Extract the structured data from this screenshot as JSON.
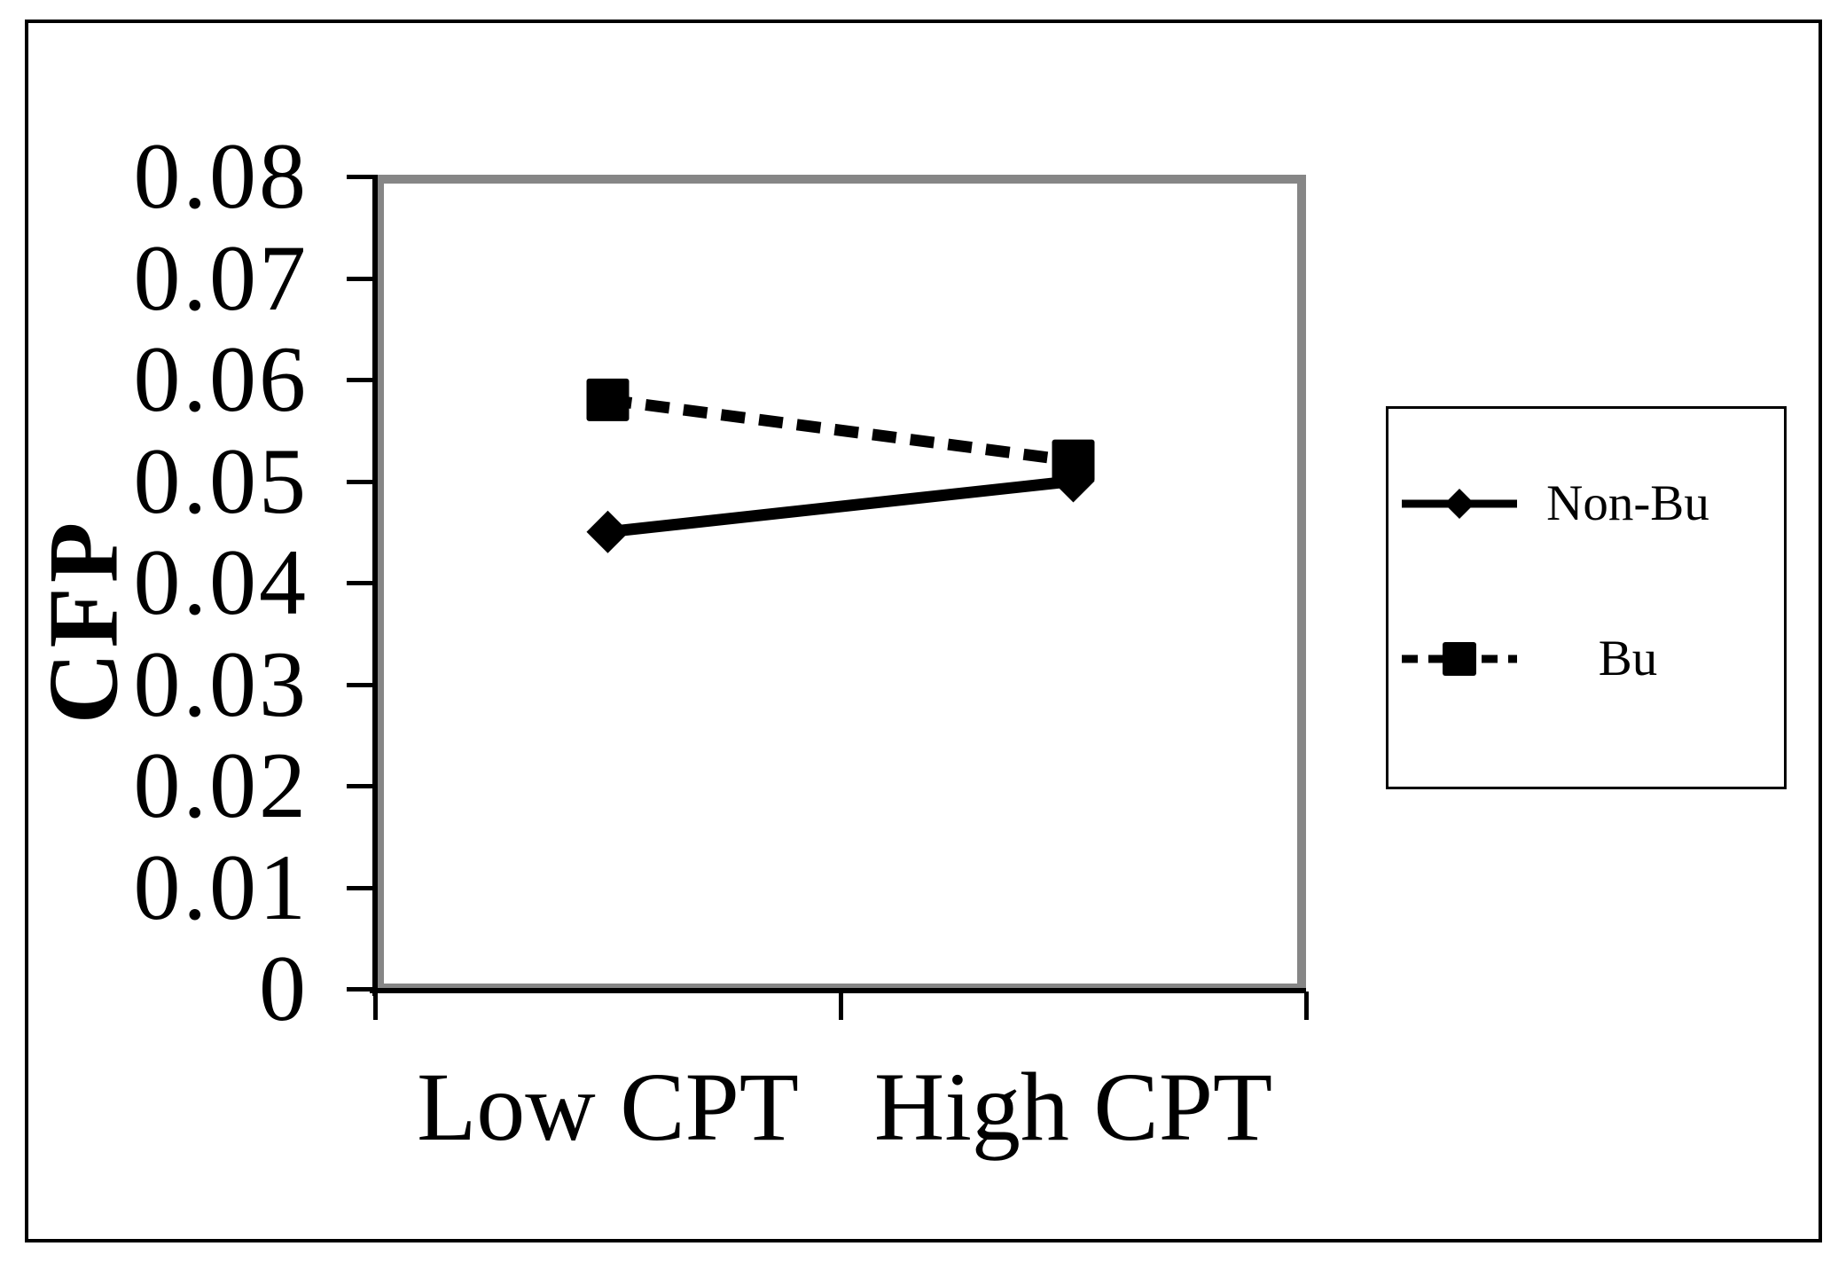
{
  "chart_data": {
    "type": "line",
    "categories": [
      "Low CPT",
      "High CPT"
    ],
    "series": [
      {
        "name": "Non-Bu",
        "values": [
          0.045,
          0.05
        ],
        "line": "solid",
        "marker": "diamond"
      },
      {
        "name": "Bu",
        "values": [
          0.058,
          0.052
        ],
        "line": "dashed",
        "marker": "square"
      }
    ],
    "title": "",
    "xlabel": "",
    "ylabel": "CFP",
    "ylim": [
      0,
      0.08
    ],
    "ytick_step": 0.01,
    "ytick_labels": [
      "0.08",
      "0.07",
      "0.06",
      "0.05",
      "0.04",
      "0.03",
      "0.02",
      "0.01",
      "0"
    ],
    "grid": false,
    "legend_position": "right"
  },
  "legend": {
    "entries": [
      {
        "label": "Non-Bu",
        "marker": "diamond-marker-icon",
        "line": "solid"
      },
      {
        "label": "Bu",
        "marker": "square-marker-icon",
        "line": "dashed"
      }
    ]
  },
  "colors": {
    "ink": "#000000",
    "plot_border": "#868686",
    "background": "#ffffff"
  }
}
